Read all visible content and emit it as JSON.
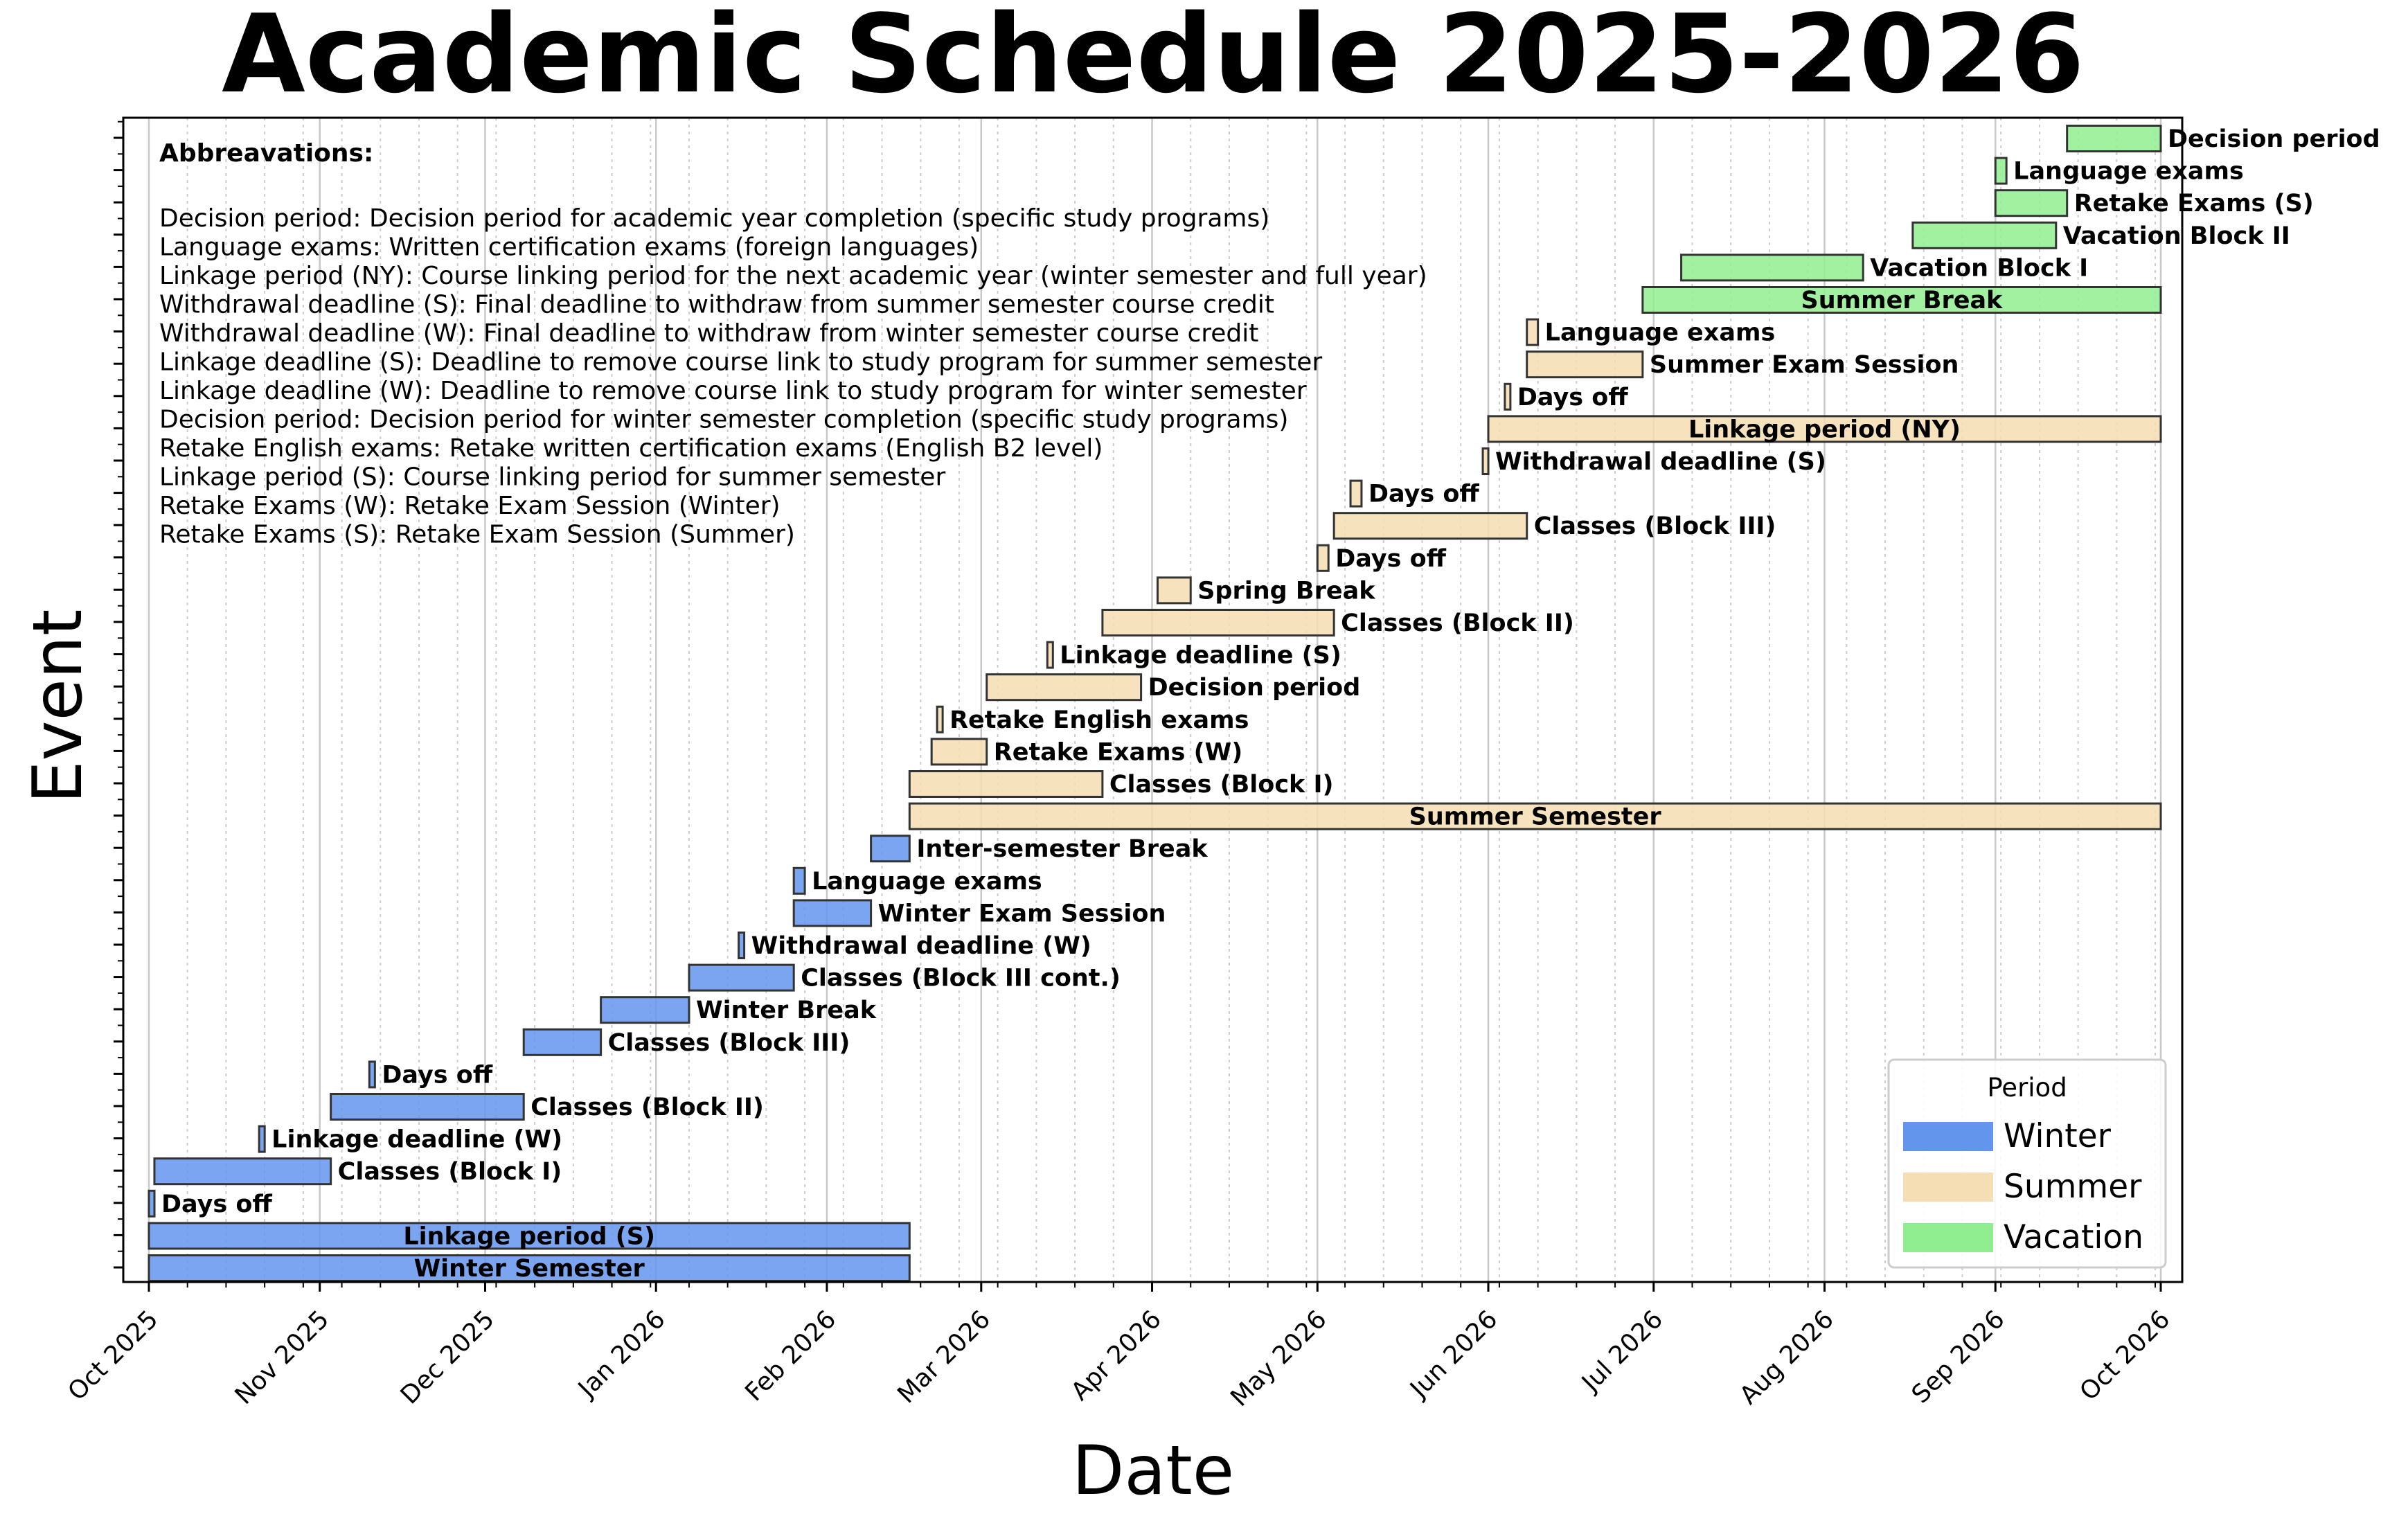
{
  "chart_data": {
    "type": "gantt",
    "title": "Academic Schedule 2025-2026",
    "xlabel": "Date",
    "ylabel": "Event",
    "xlim": [
      "2025-10-01",
      "2026-10-01"
    ],
    "xticks": [
      {
        "date": "2025-10-01",
        "label": "Oct 2025"
      },
      {
        "date": "2025-11-01",
        "label": "Nov 2025"
      },
      {
        "date": "2025-12-01",
        "label": "Dec 2025"
      },
      {
        "date": "2026-01-01",
        "label": "Jan 2026"
      },
      {
        "date": "2026-02-01",
        "label": "Feb 2026"
      },
      {
        "date": "2026-03-01",
        "label": "Mar 2026"
      },
      {
        "date": "2026-04-01",
        "label": "Apr 2026"
      },
      {
        "date": "2026-05-01",
        "label": "May 2026"
      },
      {
        "date": "2026-06-01",
        "label": "Jun 2026"
      },
      {
        "date": "2026-07-01",
        "label": "Jul 2026"
      },
      {
        "date": "2026-08-01",
        "label": "Aug 2026"
      },
      {
        "date": "2026-09-01",
        "label": "Sep 2026"
      },
      {
        "date": "2026-10-01",
        "label": "Oct 2026"
      }
    ],
    "grid": "major and minor vertical",
    "legend": {
      "title": "Period",
      "placement": "lower-right",
      "entries": [
        {
          "name": "Winter",
          "color": "#6495ED"
        },
        {
          "name": "Summer",
          "color": "#F5DEB3"
        },
        {
          "name": "Vacation",
          "color": "#90EE90"
        }
      ]
    },
    "tasks": [
      {
        "label": "Winter Semester",
        "start": "2025-10-01",
        "end": "2026-02-16",
        "period": "Winter",
        "label_inside": true
      },
      {
        "label": "Linkage period (S)",
        "start": "2025-10-01",
        "end": "2026-02-16",
        "period": "Winter",
        "label_inside": true
      },
      {
        "label": "Days off",
        "start": "2025-10-01",
        "end": "2025-10-02",
        "period": "Winter"
      },
      {
        "label": "Classes (Block I)",
        "start": "2025-10-02",
        "end": "2025-11-03",
        "period": "Winter"
      },
      {
        "label": "Linkage deadline (W)",
        "start": "2025-10-21",
        "end": "2025-10-22",
        "period": "Winter"
      },
      {
        "label": "Classes (Block II)",
        "start": "2025-11-03",
        "end": "2025-12-08",
        "period": "Winter"
      },
      {
        "label": "Days off",
        "start": "2025-11-10",
        "end": "2025-11-11",
        "period": "Winter"
      },
      {
        "label": "Classes (Block III)",
        "start": "2025-12-08",
        "end": "2025-12-22",
        "period": "Winter"
      },
      {
        "label": "Winter Break",
        "start": "2025-12-22",
        "end": "2026-01-07",
        "period": "Winter"
      },
      {
        "label": "Classes (Block III cont.)",
        "start": "2026-01-07",
        "end": "2026-01-26",
        "period": "Winter"
      },
      {
        "label": "Withdrawal deadline (W)",
        "start": "2026-01-16",
        "end": "2026-01-17",
        "period": "Winter"
      },
      {
        "label": "Winter Exam Session",
        "start": "2026-01-26",
        "end": "2026-02-09",
        "period": "Winter"
      },
      {
        "label": "Language exams",
        "start": "2026-01-26",
        "end": "2026-01-28",
        "period": "Winter"
      },
      {
        "label": "Inter-semester Break",
        "start": "2026-02-09",
        "end": "2026-02-16",
        "period": "Winter"
      },
      {
        "label": "Summer Semester",
        "start": "2026-02-16",
        "end": "2026-10-01",
        "period": "Summer",
        "label_inside": true
      },
      {
        "label": "Classes (Block I)",
        "start": "2026-02-16",
        "end": "2026-03-23",
        "period": "Summer"
      },
      {
        "label": "Retake Exams (W)",
        "start": "2026-02-20",
        "end": "2026-03-02",
        "period": "Summer"
      },
      {
        "label": "Retake English exams",
        "start": "2026-02-21",
        "end": "2026-02-22",
        "period": "Summer"
      },
      {
        "label": "Decision period",
        "start": "2026-03-02",
        "end": "2026-03-30",
        "period": "Summer"
      },
      {
        "label": "Linkage deadline (S)",
        "start": "2026-03-13",
        "end": "2026-03-14",
        "period": "Summer"
      },
      {
        "label": "Classes (Block II)",
        "start": "2026-03-23",
        "end": "2026-05-04",
        "period": "Summer"
      },
      {
        "label": "Spring Break",
        "start": "2026-04-02",
        "end": "2026-04-08",
        "period": "Summer"
      },
      {
        "label": "Days off",
        "start": "2026-05-01",
        "end": "2026-05-03",
        "period": "Summer"
      },
      {
        "label": "Classes (Block III)",
        "start": "2026-05-04",
        "end": "2026-06-08",
        "period": "Summer"
      },
      {
        "label": "Days off",
        "start": "2026-05-07",
        "end": "2026-05-09",
        "period": "Summer"
      },
      {
        "label": "Withdrawal deadline (S)",
        "start": "2026-05-31",
        "end": "2026-06-01",
        "period": "Summer"
      },
      {
        "label": "Linkage period (NY)",
        "start": "2026-06-01",
        "end": "2026-10-01",
        "period": "Summer",
        "label_inside": true
      },
      {
        "label": "Days off",
        "start": "2026-06-04",
        "end": "2026-06-05",
        "period": "Summer"
      },
      {
        "label": "Summer Exam Session",
        "start": "2026-06-08",
        "end": "2026-06-29",
        "period": "Summer"
      },
      {
        "label": "Language exams",
        "start": "2026-06-08",
        "end": "2026-06-10",
        "period": "Summer"
      },
      {
        "label": "Summer Break",
        "start": "2026-06-29",
        "end": "2026-10-01",
        "period": "Vacation",
        "label_inside": true
      },
      {
        "label": "Vacation Block I",
        "start": "2026-07-06",
        "end": "2026-08-08",
        "period": "Vacation"
      },
      {
        "label": "Vacation Block II",
        "start": "2026-08-17",
        "end": "2026-09-12",
        "period": "Vacation"
      },
      {
        "label": "Retake Exams (S)",
        "start": "2026-09-01",
        "end": "2026-09-14",
        "period": "Vacation"
      },
      {
        "label": "Language exams",
        "start": "2026-09-01",
        "end": "2026-09-03",
        "period": "Vacation"
      },
      {
        "label": "Decision period",
        "start": "2026-09-14",
        "end": "2026-10-01",
        "period": "Vacation"
      }
    ],
    "annotation": {
      "heading": "Abbreavations:",
      "lines": [
        "Decision period: Decision period for academic year completion (specific study programs)",
        "Language exams: Written certification exams (foreign languages)",
        "Linkage period (NY): Course linking period for the next academic year (winter semester and full year)",
        "Withdrawal deadline (S): Final deadline to withdraw from summer semester course credit",
        "Withdrawal deadline (W): Final deadline to withdraw from winter semester course credit",
        "Linkage deadline (S): Deadline to remove course link to study program for summer semester",
        "Linkage deadline (W): Deadline to remove course link to study program for winter semester",
        "Decision period: Decision period for winter semester completion (specific study programs)",
        "Retake English exams: Retake written certification exams (English B2 level)",
        "Linkage period (S): Course linking period for summer semester",
        "Retake Exams (W): Retake Exam Session (Winter)",
        "Retake Exams (S): Retake Exam Session (Summer)"
      ]
    }
  }
}
